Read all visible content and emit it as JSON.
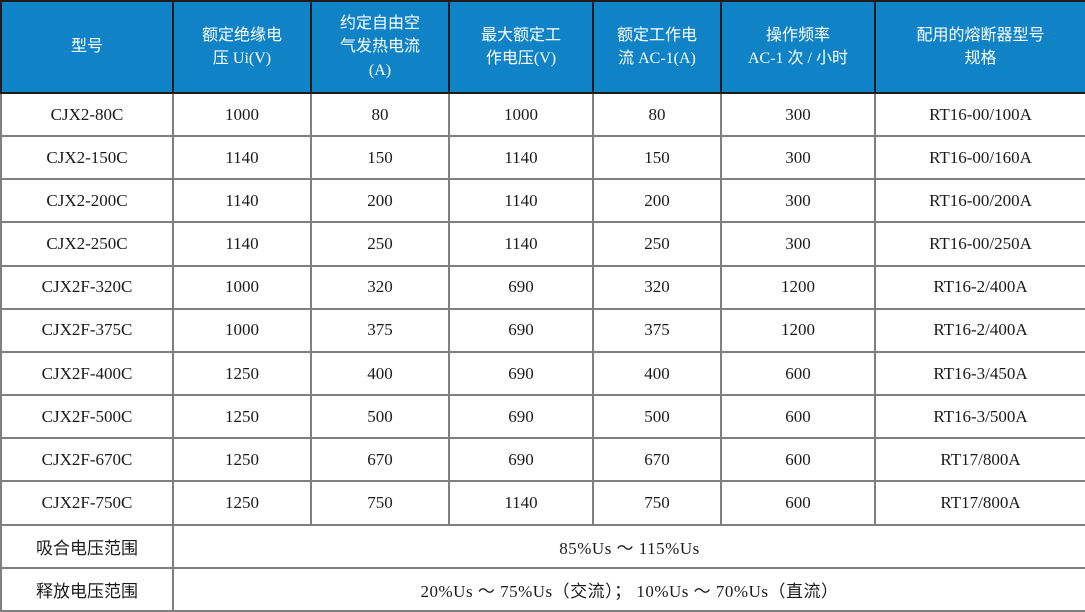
{
  "table": {
    "columns": [
      {
        "label": "型号"
      },
      {
        "label": "额定绝缘电\n压 Ui(V)"
      },
      {
        "label": "约定自由空\n气发热电流\n(A)"
      },
      {
        "label": "最大额定工\n作电压(V)"
      },
      {
        "label": "额定工作电\n流 AC-1(A)"
      },
      {
        "label": "操作频率\nAC-1 次 / 小时"
      },
      {
        "label": "配用的熔断器型号\n规格"
      }
    ],
    "rows": [
      [
        "CJX2-80C",
        "1000",
        "80",
        "1000",
        "80",
        "300",
        "RT16-00/100A"
      ],
      [
        "CJX2-150C",
        "1140",
        "150",
        "1140",
        "150",
        "300",
        "RT16-00/160A"
      ],
      [
        "CJX2-200C",
        "1140",
        "200",
        "1140",
        "200",
        "300",
        "RT16-00/200A"
      ],
      [
        "CJX2-250C",
        "1140",
        "250",
        "1140",
        "250",
        "300",
        "RT16-00/250A"
      ],
      [
        "CJX2F-320C",
        "1000",
        "320",
        "690",
        "320",
        "1200",
        "RT16-2/400A"
      ],
      [
        "CJX2F-375C",
        "1000",
        "375",
        "690",
        "375",
        "1200",
        "RT16-2/400A"
      ],
      [
        "CJX2F-400C",
        "1250",
        "400",
        "690",
        "400",
        "600",
        "RT16-3/450A"
      ],
      [
        "CJX2F-500C",
        "1250",
        "500",
        "690",
        "500",
        "600",
        "RT16-3/500A"
      ],
      [
        "CJX2F-670C",
        "1250",
        "670",
        "690",
        "670",
        "600",
        "RT17/800A"
      ],
      [
        "CJX2F-750C",
        "1250",
        "750",
        "1140",
        "750",
        "600",
        "RT17/800A"
      ]
    ],
    "footer_rows": [
      {
        "label": "吸合电压范围",
        "value": "85%Us ～ 115%Us"
      },
      {
        "label": "释放电压范围",
        "value": "20%Us ～ 75%Us（交流）； 10%Us ～ 70%Us（直流）"
      }
    ],
    "colors": {
      "header_bg": "#0f83c6",
      "header_text": "#ffffff",
      "header_divider": "#1c1c1c",
      "grid_line": "#7f7f7f",
      "body_text": "#1a1a1a"
    }
  }
}
